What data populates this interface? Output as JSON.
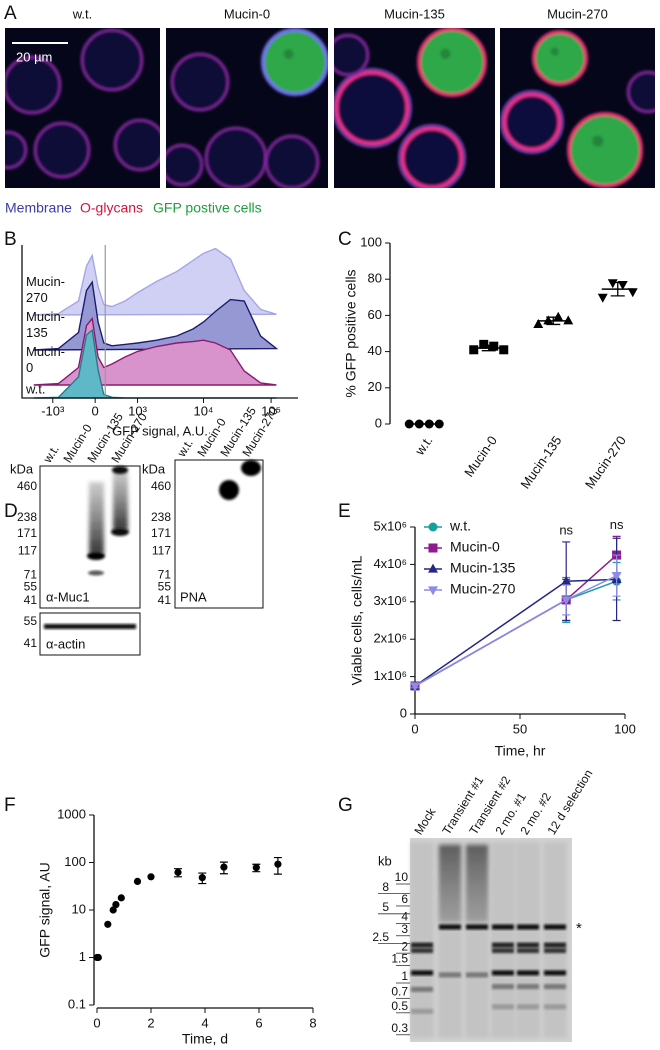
{
  "panel_labels": [
    "A",
    "B",
    "C",
    "D",
    "E",
    "F",
    "G"
  ],
  "microscopy": {
    "titles": [
      "w.t.",
      "Mucin-0",
      "Mucin-135",
      "Mucin-270"
    ],
    "scale_bar": "20 µm",
    "channels": [
      {
        "name": "Membrane",
        "color": "#3c3ca8"
      },
      {
        "name": "O-glycans",
        "color": "#d2143c"
      },
      {
        "name": "GFP postive cells",
        "color": "#1e9e3c"
      }
    ]
  },
  "chart_data": [
    {
      "type": "ridgeline",
      "xlabel": "GFP signal, A.U.",
      "xscale": "biexponential",
      "xlim": [
        -3000,
        250000
      ],
      "xticks": [
        {
          "value": -1000,
          "label": "-10³"
        },
        0,
        {
          "value": 1000,
          "label": "10³"
        },
        {
          "value": 10000,
          "label": "10⁴"
        },
        {
          "value": 100000,
          "label": "10⁵"
        }
      ],
      "gate": 175,
      "x": [
        -2000,
        -800,
        -300,
        -150,
        -50,
        50,
        150,
        300,
        600,
        1000,
        2000,
        4000,
        7000,
        10000,
        15000,
        25000,
        40000,
        70000,
        120000
      ],
      "series": [
        {
          "name": "Mucin-270",
          "color": "#cfd0f4",
          "line": "#a4a6e6",
          "values": [
            0,
            2,
            20,
            70,
            85,
            40,
            15,
            12,
            20,
            32,
            48,
            62,
            78,
            88,
            95,
            80,
            35,
            8,
            1
          ]
        },
        {
          "name": "Mucin-135",
          "color": "#9698d4",
          "line": "#1c1c6e",
          "values": [
            0,
            2,
            25,
            85,
            97,
            40,
            10,
            6,
            8,
            10,
            14,
            20,
            30,
            40,
            55,
            72,
            70,
            20,
            2
          ]
        },
        {
          "name": "Mucin-0",
          "color": "#d993cc",
          "line": "#8a1a70",
          "values": [
            0,
            2,
            25,
            85,
            95,
            40,
            25,
            30,
            40,
            48,
            55,
            60,
            62,
            64,
            60,
            50,
            20,
            3,
            0
          ]
        },
        {
          "name": "w.t.",
          "color": "#5fb8c8",
          "line": "#2a7a8a",
          "values": [
            0,
            1,
            30,
            90,
            97,
            40,
            5,
            1,
            0,
            0,
            0,
            0,
            0,
            0,
            0,
            0,
            0,
            0,
            0
          ]
        }
      ]
    },
    {
      "type": "dot",
      "ylabel": "% GFP positive cells",
      "categories": [
        "w.t.",
        "Mucin-0",
        "Mucin-135",
        "Mucin-270"
      ],
      "values": [
        [
          0,
          0,
          0,
          0
        ],
        [
          41,
          44,
          43,
          41
        ],
        [
          55,
          57,
          59,
          57
        ],
        [
          70,
          78,
          77,
          73
        ]
      ],
      "means": [
        0,
        42,
        57,
        74.5
      ],
      "errors": [
        0,
        1.5,
        2,
        3.7
      ],
      "markers": [
        "circle",
        "square",
        "triangle",
        "triangle-down"
      ],
      "color": "#000000",
      "ylim": [
        0,
        100
      ],
      "yticks": [
        0,
        20,
        40,
        60,
        80,
        100
      ]
    },
    {
      "type": "line",
      "ylabel": "Viable cells, cells/mL",
      "xlabel": "Time, hr",
      "x": [
        0,
        72,
        96
      ],
      "series": [
        {
          "name": "w.t.",
          "color": "#16a0a0",
          "marker": "circle",
          "values": [
            750000,
            3050000,
            3550000
          ],
          "errors": [
            50000,
            600000,
            500000
          ]
        },
        {
          "name": "Mucin-0",
          "color": "#8e1a8e",
          "marker": "square",
          "values": [
            750000,
            3050000,
            4250000
          ],
          "errors": [
            50000,
            550000,
            500000
          ]
        },
        {
          "name": "Mucin-135",
          "color": "#262686",
          "marker": "triangle",
          "values": [
            750000,
            3550000,
            3600000
          ],
          "errors": [
            50000,
            1050000,
            1100000
          ]
        },
        {
          "name": "Mucin-270",
          "color": "#8c8ce6",
          "marker": "triangle-down",
          "values": [
            750000,
            3050000,
            3700000
          ],
          "errors": [
            50000,
            400000,
            550000
          ]
        }
      ],
      "xlim": [
        0,
        100
      ],
      "xticks": [
        0,
        50,
        100
      ],
      "ylim": [
        0,
        5000000
      ],
      "yticks": [
        0,
        {
          "value": 1000000,
          "label": "1x10⁶"
        },
        {
          "value": 2000000,
          "label": "2x10⁶"
        },
        {
          "value": 3000000,
          "label": "3x10⁶"
        },
        {
          "value": 4000000,
          "label": "4x10⁶"
        },
        {
          "value": 5000000,
          "label": "5x10⁶"
        }
      ],
      "annotations": [
        {
          "text": "ns",
          "x": 72
        },
        {
          "text": "ns",
          "x": 96
        }
      ],
      "legend": "upper left"
    },
    {
      "type": "scatter",
      "xlabel": "Time, d",
      "ylabel": "GFP signal, AU",
      "x": [
        0,
        0.05,
        0.4,
        0.6,
        0.7,
        0.9,
        1.5,
        2,
        3,
        3.9,
        4.7,
        5.9,
        6.7
      ],
      "values": [
        1,
        1,
        5,
        10,
        13,
        18,
        40,
        50,
        62,
        48,
        80,
        78,
        92
      ],
      "errors": [
        null,
        null,
        null,
        null,
        null,
        null,
        null,
        null,
        12,
        12,
        22,
        14,
        35
      ],
      "color": "#000000",
      "xlim": [
        0,
        8
      ],
      "xticks": [
        0,
        2,
        4,
        6,
        8
      ],
      "ylim": [
        0.1,
        1000
      ],
      "yticks": [
        0.1,
        1,
        10,
        100,
        1000
      ],
      "yscale": "log"
    }
  ],
  "blots": {
    "lanes": [
      "w.t.",
      "Mucin-0",
      "Mucin-135",
      "Mucin-270"
    ],
    "unit": "kDa",
    "markers": [
      460,
      238,
      171,
      117,
      71,
      55,
      41
    ],
    "probes": [
      "α-Muc1",
      "PNA"
    ],
    "loading": {
      "probe": "α-actin",
      "markers": [
        55,
        41
      ]
    }
  },
  "gel": {
    "lanes": [
      "Mock",
      "Transient #1",
      "Transient #2",
      "2 mo. #1",
      "2 mo. #2",
      "12 d selection"
    ],
    "unit": "kb",
    "ladder_left": [
      8,
      5,
      2.5
    ],
    "ladder_right": [
      10,
      6,
      4,
      3,
      2,
      1.5,
      1,
      0.7,
      0.5,
      0.3
    ],
    "annotation": "*"
  }
}
